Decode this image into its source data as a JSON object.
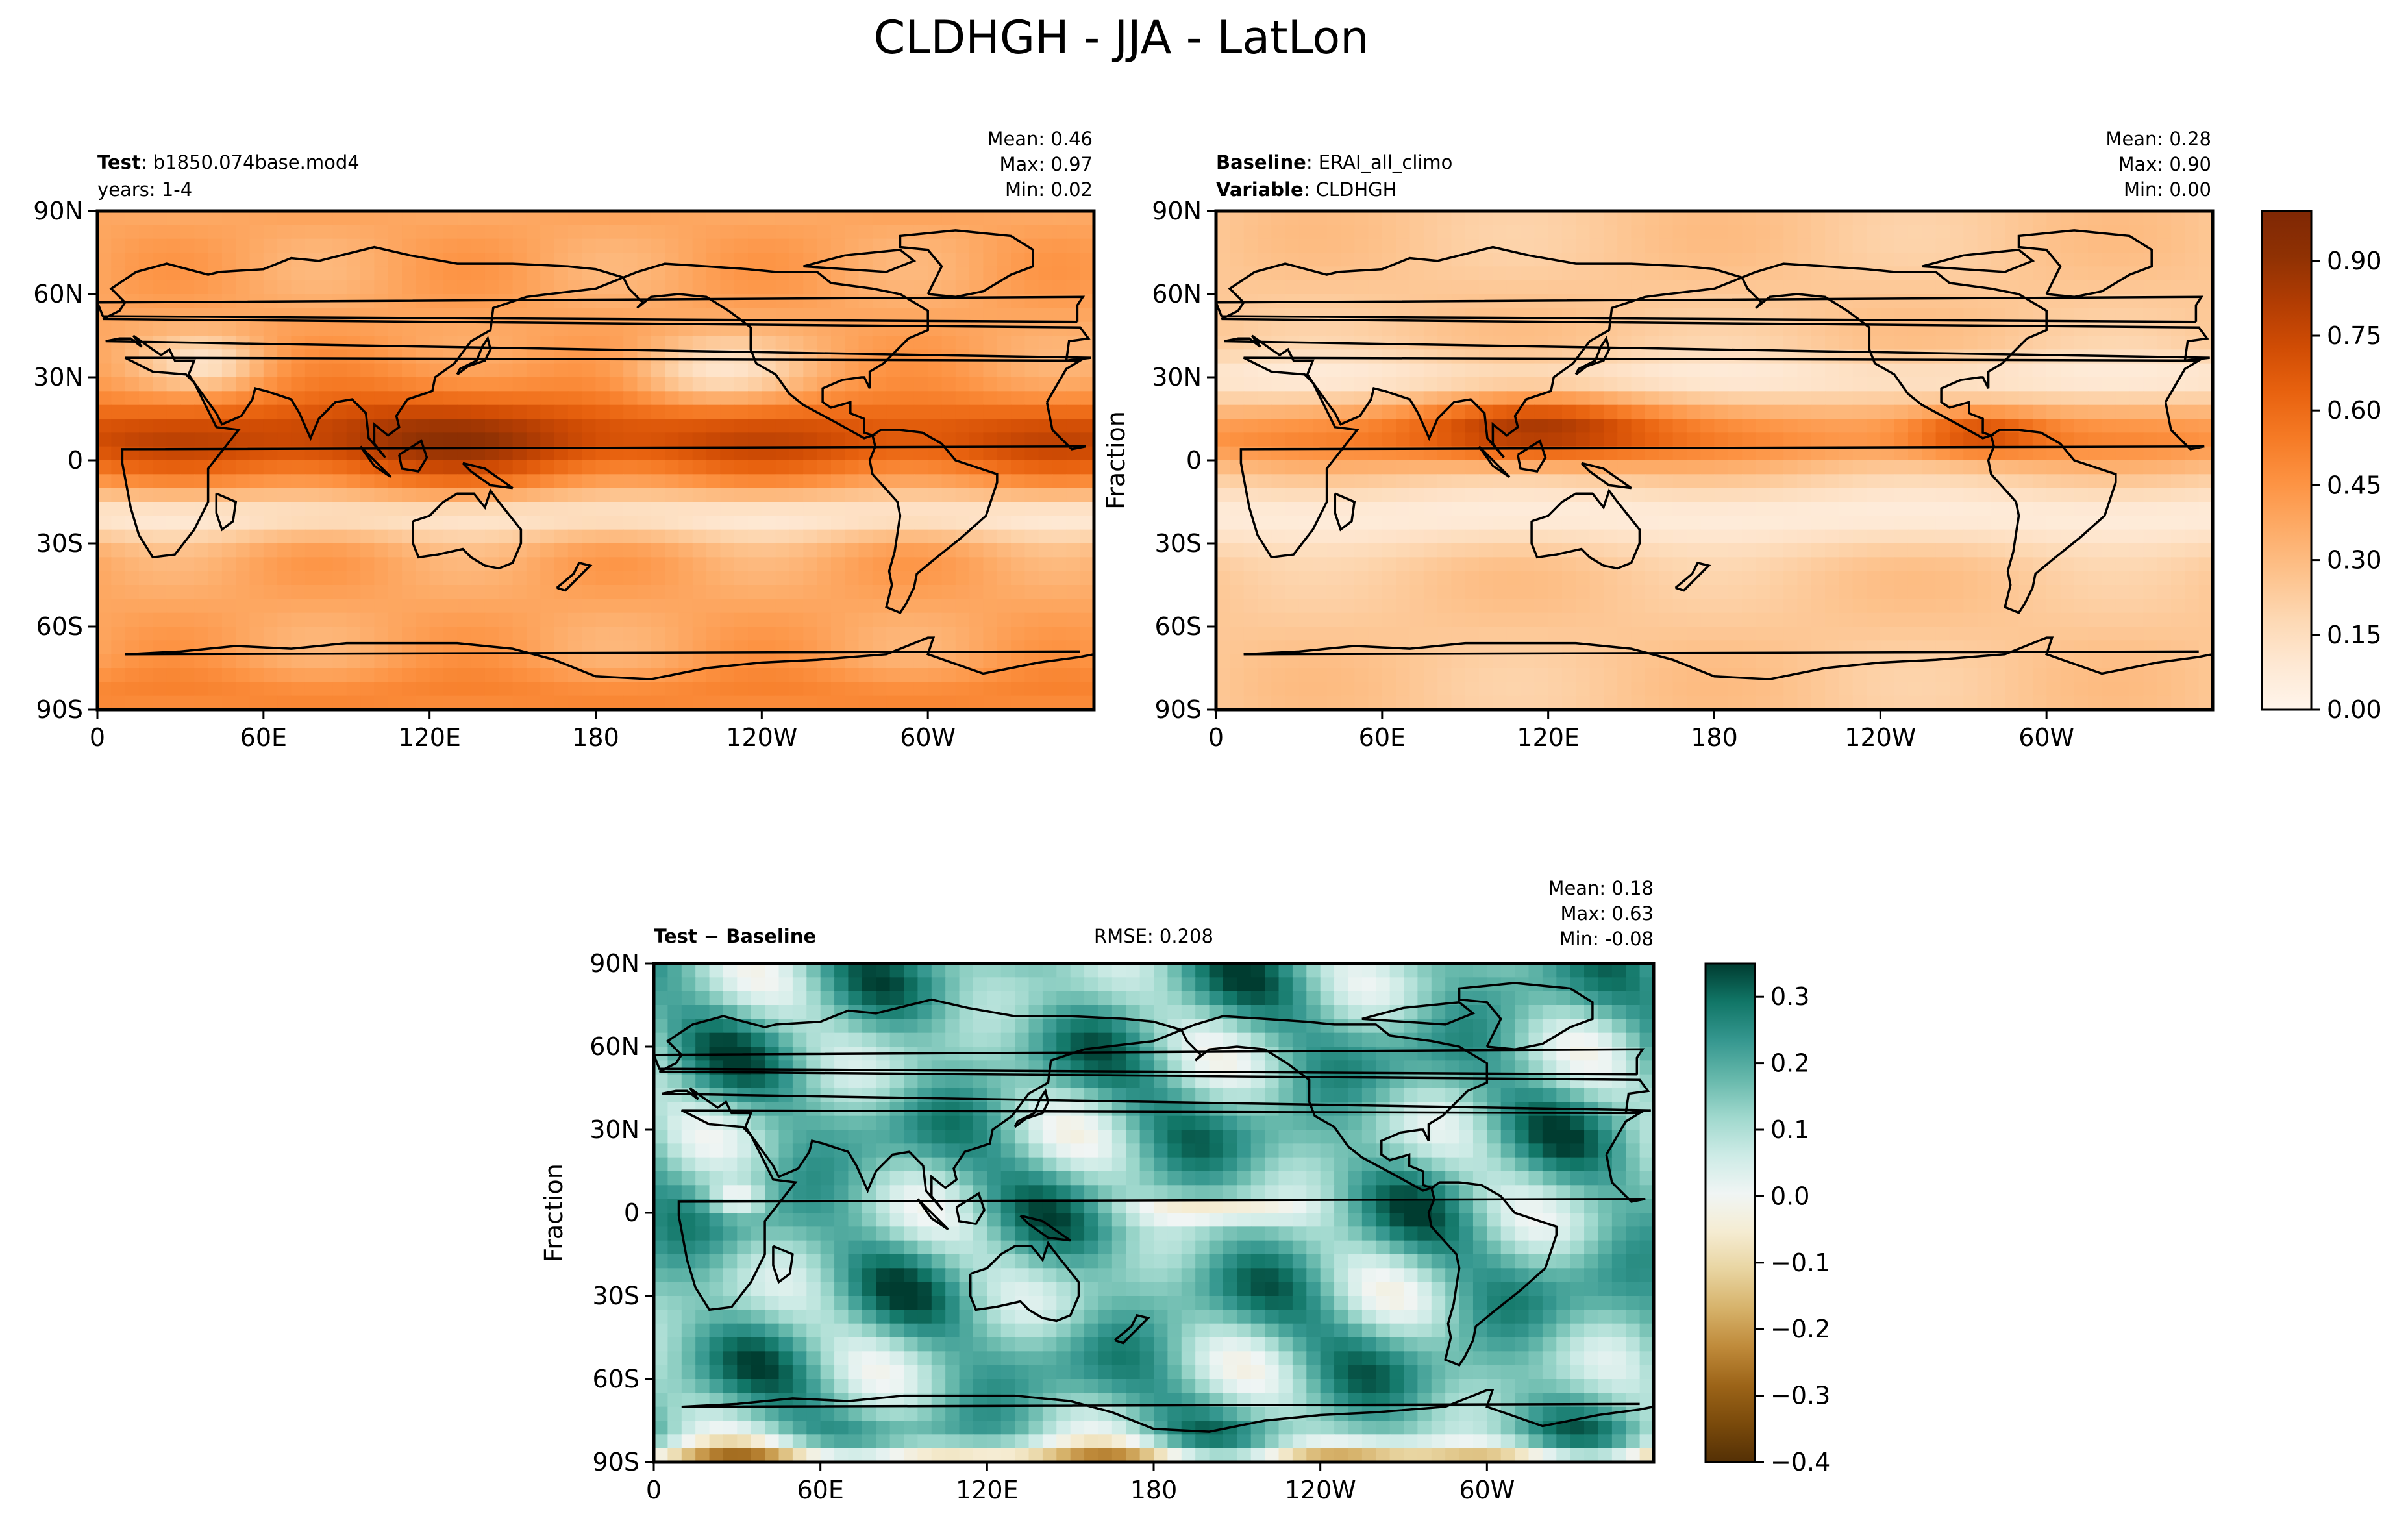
{
  "title": "CLDHGH - JJA - LatLon",
  "panels": [
    {
      "id": "test",
      "label_bold": "Test",
      "label_rest": ": b1850.074base.mod4",
      "label2_bold": "",
      "label2_rest": "years: 1-4",
      "stats": {
        "mean": "Mean:  0.46",
        "max": "Max:  0.97",
        "min": "Min:  0.02"
      },
      "ylabel": "",
      "colormap": "Oranges"
    },
    {
      "id": "baseline",
      "label_bold": "Baseline",
      "label_rest": ": ERAI_all_climo",
      "label2_bold": "Variable",
      "label2_rest": ": CLDHGH",
      "stats": {
        "mean": "Mean:  0.28",
        "max": "Max:  0.90",
        "min": "Min:  0.00"
      },
      "ylabel": "Fraction",
      "colormap": "Oranges"
    },
    {
      "id": "diff",
      "label_bold": "Test − Baseline",
      "label_rest": "",
      "rmse": "RMSE: 0.208",
      "stats": {
        "mean": "Mean:  0.18",
        "max": "Max:  0.63",
        "min": "Min: -0.08"
      },
      "ylabel": "Fraction",
      "colormap": "BrBG"
    }
  ],
  "chart_data": {
    "type": "heatmap",
    "title": "CLDHGH - JJA - LatLon",
    "projection": "PlateCarree",
    "x_ticks": [
      "0",
      "60E",
      "120E",
      "180",
      "120W",
      "60W"
    ],
    "x_tick_values": [
      0,
      60,
      120,
      180,
      240,
      300
    ],
    "y_ticks": [
      "90N",
      "60N",
      "30N",
      "0",
      "30S",
      "60S",
      "90S"
    ],
    "y_tick_values": [
      90,
      60,
      30,
      0,
      -30,
      -60,
      -90
    ],
    "xlim": [
      0,
      360
    ],
    "ylim": [
      -90,
      90
    ],
    "colorbar_main": {
      "ticks": [
        "0.90",
        "0.75",
        "0.60",
        "0.45",
        "0.30",
        "0.15",
        "0.00"
      ],
      "tick_values": [
        0.9,
        0.75,
        0.6,
        0.45,
        0.3,
        0.15,
        0.0
      ],
      "range": [
        0.0,
        1.0
      ],
      "colors": [
        "#fff5eb",
        "#fee8d3",
        "#fdd8b3",
        "#fdc28c",
        "#fdab67",
        "#fd9343",
        "#f57a25",
        "#e8620f",
        "#d04c04",
        "#b13c03",
        "#8f3103",
        "#7f2704"
      ]
    },
    "colorbar_diff": {
      "ticks": [
        "0.3",
        "0.2",
        "0.1",
        "0.0",
        "−0.1",
        "−0.2",
        "−0.3",
        "−0.4"
      ],
      "tick_values": [
        0.3,
        0.2,
        0.1,
        0.0,
        -0.1,
        -0.2,
        -0.3,
        -0.4
      ],
      "range": [
        -0.4,
        0.35
      ],
      "colors": [
        "#543005",
        "#7a4a0b",
        "#9c6418",
        "#bf8a3a",
        "#d6b26a",
        "#e8d4a0",
        "#f5ecd2",
        "#f0f5f4",
        "#cdebe6",
        "#9fd8cd",
        "#66b8ab",
        "#35978f",
        "#117667",
        "#003c30"
      ]
    },
    "series": [
      {
        "name": "Test",
        "mean": 0.46,
        "max": 0.97,
        "min": 0.02
      },
      {
        "name": "Baseline",
        "mean": 0.28,
        "max": 0.9,
        "min": 0.0
      },
      {
        "name": "Test − Baseline",
        "mean": 0.18,
        "max": 0.63,
        "min": -0.08,
        "rmse": 0.208
      }
    ]
  }
}
